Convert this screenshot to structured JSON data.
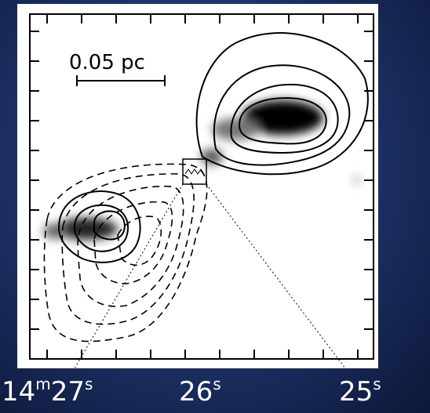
{
  "scale_bar": {
    "label": "0.05 pc"
  },
  "x_axis": {
    "labels": [
      [
        "14",
        "m",
        "27",
        "s"
      ],
      [
        "26",
        "s"
      ],
      [
        "25",
        "s"
      ]
    ]
  }
}
